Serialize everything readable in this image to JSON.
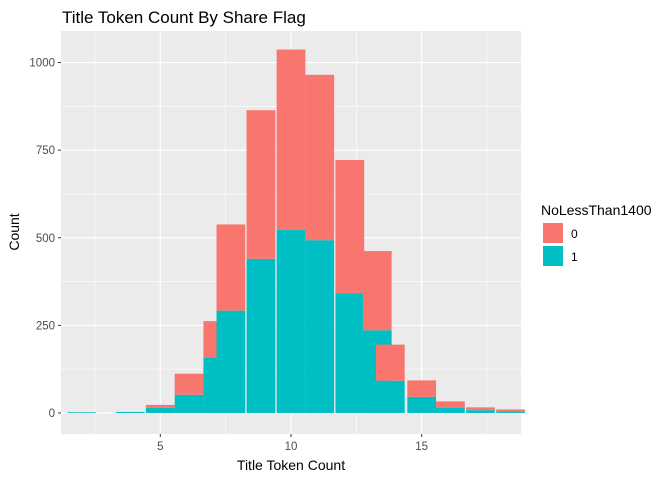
{
  "chart_data": {
    "type": "bar",
    "stacked": true,
    "title": "Title Token Count By Share Flag",
    "xlabel": "Title Token Count",
    "ylabel": "Count",
    "xlim": [
      1.2,
      18.8
    ],
    "ylim": [
      -60,
      1090
    ],
    "x_ticks": [
      5,
      10,
      15
    ],
    "y_ticks": [
      0,
      250,
      500,
      750,
      1000
    ],
    "grid": true,
    "legend": {
      "title": "NoLessThan1400",
      "position": "right"
    },
    "x": [
      2,
      3.85,
      5,
      6.1,
      7.2,
      7.7,
      8.85,
      10,
      11.1,
      12.25,
      13.3,
      13.8,
      15,
      16.1,
      17.25,
      18.4
    ],
    "series": [
      {
        "name": "1",
        "color": "#00BFC4",
        "values": [
          2,
          3,
          15,
          52,
          158,
          292,
          440,
          522,
          493,
          342,
          236,
          92,
          46,
          15,
          8,
          5
        ]
      },
      {
        "name": "0",
        "color": "#F8766D",
        "values": [
          0,
          0,
          8,
          60,
          104,
          246,
          424,
          515,
          472,
          380,
          226,
          103,
          47,
          18,
          8,
          5
        ]
      }
    ]
  }
}
